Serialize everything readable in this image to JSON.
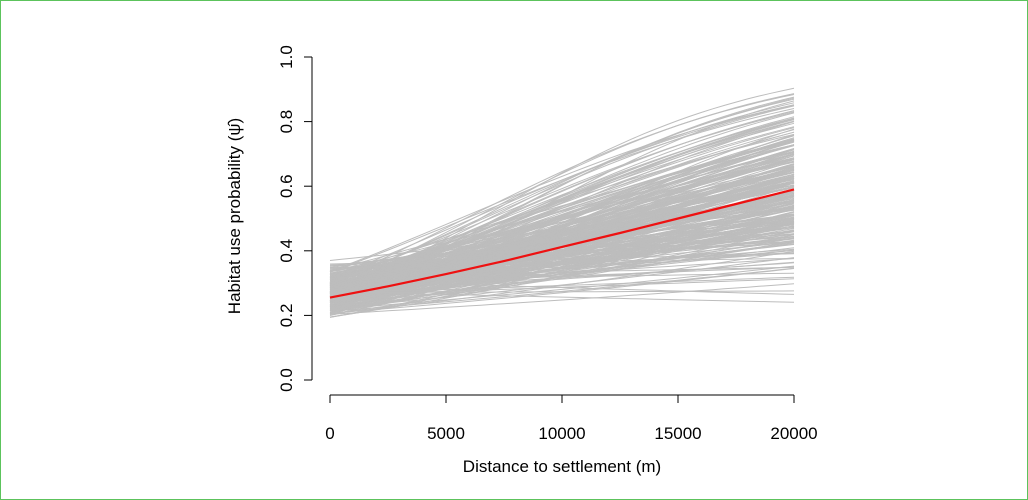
{
  "chart_data": {
    "type": "line",
    "title": "",
    "xlabel": "Distance to settlement (m)",
    "ylabel": "Habitat use probability (ψ̂)",
    "xlim": [
      0,
      20000
    ],
    "ylim": [
      0,
      1
    ],
    "xticks": [
      0,
      5000,
      10000,
      15000,
      20000
    ],
    "yticks": [
      0.0,
      0.2,
      0.4,
      0.6,
      0.8,
      1.0
    ],
    "xtick_labels": [
      "0",
      "5000",
      "10000",
      "15000",
      "20000"
    ],
    "ytick_labels": [
      "0.0",
      "0.2",
      "0.4",
      "0.6",
      "0.8",
      "1.0"
    ],
    "grid": false,
    "legend": "none",
    "mean_curve": {
      "color": "#ee1111",
      "x": [
        0,
        2500,
        5000,
        7500,
        10000,
        12500,
        15000,
        17500,
        20000
      ],
      "y": [
        0.255,
        0.29,
        0.328,
        0.368,
        0.412,
        0.455,
        0.5,
        0.545,
        0.59
      ]
    },
    "posterior_draws": {
      "color": "#bdbdbd",
      "count": 300,
      "y_at_x0_range": [
        0.16,
        0.39
      ],
      "y_at_x20000_range": [
        0.14,
        0.95
      ]
    }
  }
}
